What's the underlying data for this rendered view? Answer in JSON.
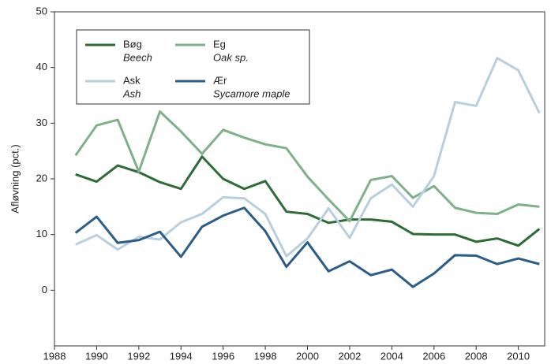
{
  "chart_data": {
    "type": "line",
    "y_label": "Afløvning (pct.)",
    "x": [
      1989,
      1990,
      1991,
      1992,
      1993,
      1994,
      1995,
      1996,
      1997,
      1998,
      1999,
      2000,
      2001,
      2002,
      2003,
      2004,
      2005,
      2006,
      2007,
      2008,
      2009,
      2010,
      2011
    ],
    "series": [
      {
        "name": "Bøg",
        "subtitle": "Beech",
        "color": "#2e6b36",
        "values": [
          20.8,
          19.5,
          22.4,
          21.2,
          19.4,
          18.2,
          24,
          20,
          18.2,
          19.6,
          14.1,
          13.7,
          12.1,
          12.7,
          12.7,
          12.3,
          10.1,
          10,
          10,
          8.7,
          9.3,
          8,
          11
        ]
      },
      {
        "name": "Eg",
        "subtitle": "Oak sp.",
        "color": "#7fb08a",
        "values": [
          24.2,
          29.6,
          30.6,
          21.3,
          32.1,
          28.5,
          24.5,
          28.8,
          27.4,
          26.2,
          25.5,
          20.4,
          16.3,
          12.4,
          19.8,
          20.5,
          16.6,
          18.7,
          14.8,
          13.9,
          13.7,
          15.4,
          15
        ]
      },
      {
        "name": "Ask",
        "subtitle": "Ash",
        "color": "#b7cfdf",
        "values": [
          8.2,
          9.9,
          7.3,
          9.6,
          9.1,
          12.2,
          13.7,
          16.7,
          16.5,
          13.7,
          6.1,
          9.3,
          14.7,
          9.4,
          16.5,
          19,
          15,
          20.5,
          33.8,
          33.1,
          41.7,
          39.5,
          31.8
        ]
      },
      {
        "name": "Ær",
        "subtitle": "Sycamore maple",
        "color": "#2c5d8a",
        "values": [
          10.3,
          13.2,
          8.5,
          9.0,
          10.5,
          6.0,
          11.4,
          13.4,
          14.8,
          10.6,
          4.2,
          8.6,
          3.4,
          5.2,
          2.7,
          3.7,
          0.6,
          3,
          6.3,
          6.2,
          4.7,
          5.7,
          4.7
        ]
      }
    ],
    "xlim": [
      1988,
      2011.25
    ],
    "xticks": [
      1988,
      1990,
      1992,
      1994,
      1996,
      1998,
      2000,
      2002,
      2004,
      2006,
      2008,
      2010
    ],
    "ylim": [
      -10,
      50
    ],
    "yticks": [
      0,
      10,
      20,
      30,
      40,
      50
    ]
  }
}
